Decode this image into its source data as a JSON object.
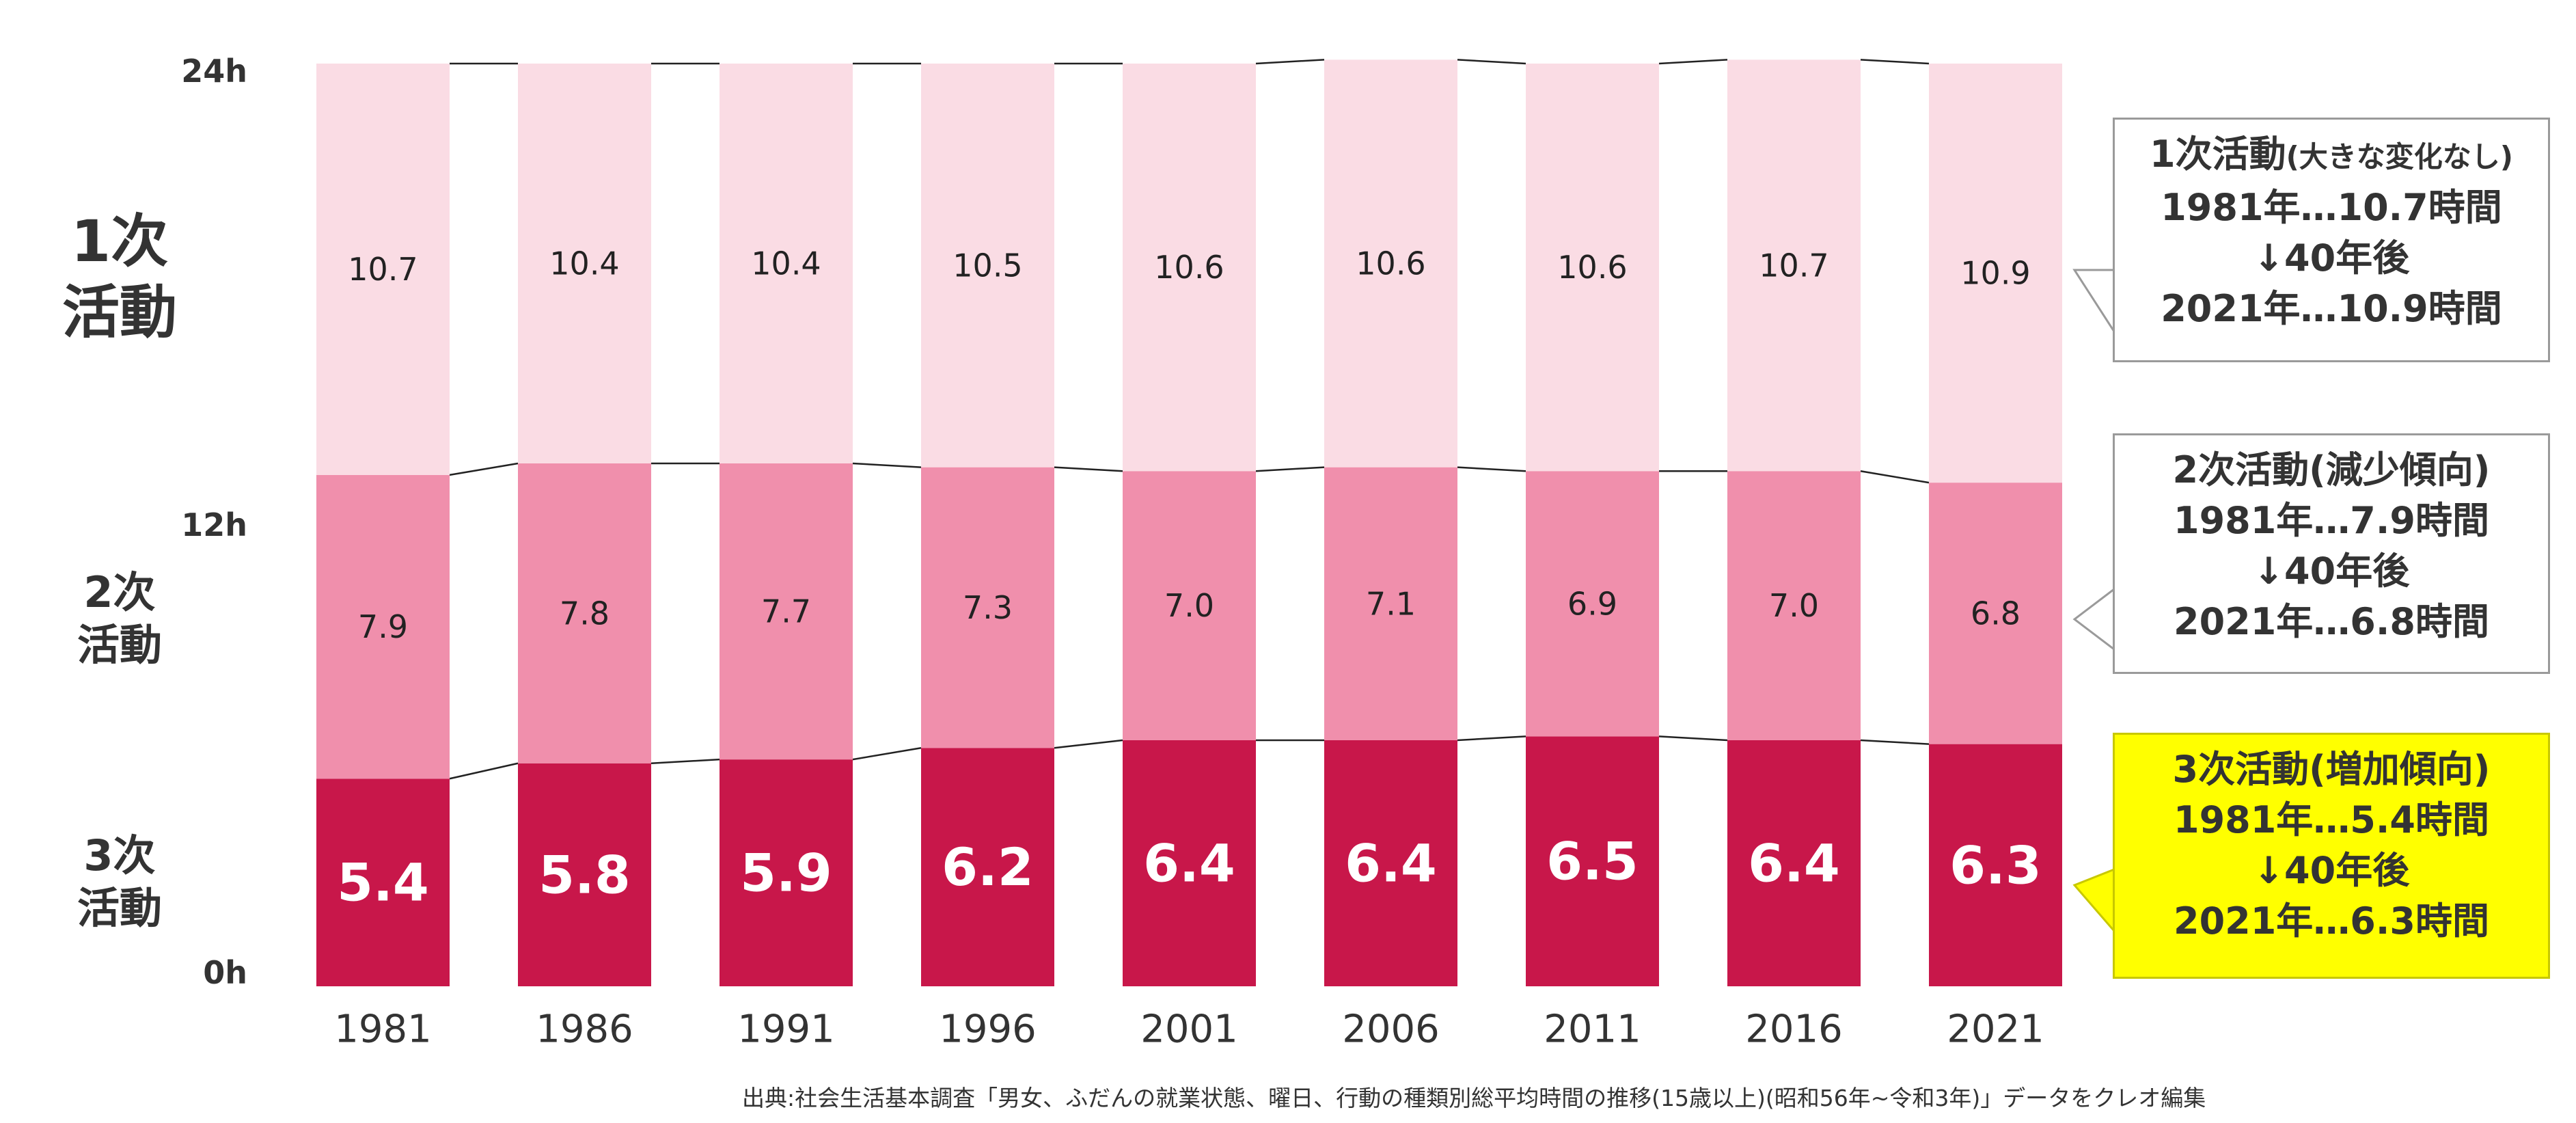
{
  "chart_data": {
    "type": "bar",
    "stacked": true,
    "categories": [
      "1981",
      "1986",
      "1991",
      "1996",
      "2001",
      "2006",
      "2011",
      "2016",
      "2021"
    ],
    "series": [
      {
        "name": "3次活動",
        "values": [
          5.4,
          5.8,
          5.9,
          6.2,
          6.4,
          6.4,
          6.5,
          6.4,
          6.3
        ],
        "color": "#c8174a",
        "label_color": "#ffffff"
      },
      {
        "name": "2次活動",
        "values": [
          7.9,
          7.8,
          7.7,
          7.3,
          7.0,
          7.1,
          6.9,
          7.0,
          6.8
        ],
        "color": "#f08fac",
        "label_color": "#222222"
      },
      {
        "name": "1次活動",
        "values": [
          10.7,
          10.4,
          10.4,
          10.5,
          10.6,
          10.6,
          10.6,
          10.7,
          10.9
        ],
        "color": "#fadce4",
        "label_color": "#222222"
      }
    ],
    "y_ticks": [
      "0h",
      "12h",
      "24h"
    ],
    "ylim": [
      0,
      24
    ],
    "connector_lines": true,
    "legend_placement": "left"
  },
  "notes": [
    {
      "title": "1次活動",
      "title_note": "(大きな変化なし)",
      "line2": "1981年…10.7時間",
      "line3": "↓40年後",
      "line4": "2021年…10.9時間",
      "highlight": false
    },
    {
      "title": "2次活動(減少傾向)",
      "title_note": "",
      "line2": "1981年…7.9時間",
      "line3": "↓40年後",
      "line4": "2021年…6.8時間",
      "highlight": false
    },
    {
      "title": "3次活動(増加傾向)",
      "title_note": "",
      "line2": "1981年…5.4時間",
      "line3": "↓40年後",
      "line4": "2021年…6.3時間",
      "highlight": true
    }
  ],
  "source": "出典:社会生活基本調査「男女、ふだんの就業状態、曜日、行動の種類別総平均時間の推移(15歳以上)(昭和56年~令和3年)」データをクレオ編集"
}
